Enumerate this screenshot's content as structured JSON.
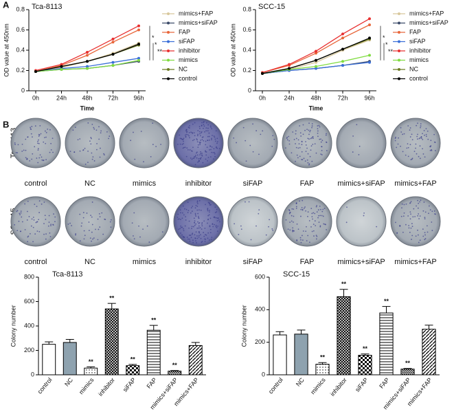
{
  "panel_labels": [
    "A",
    "B"
  ],
  "plates": {
    "rows": [
      "Tca-8113",
      "SCC-15"
    ],
    "captions": [
      "control",
      "NC",
      "mimics",
      "inhibitor",
      "siFAP",
      "FAP",
      "mimics+siFAP",
      "mimics+FAP"
    ]
  },
  "chart_data": [
    {
      "type": "line",
      "title": "Tca-8113",
      "x_label": "Time",
      "y_label": "OD value at 450nm",
      "categories": [
        "0h",
        "24h",
        "48h",
        "72h",
        "96h"
      ],
      "ylim": [
        0,
        0.8
      ],
      "yticks": [
        0,
        0.2,
        0.4,
        0.6,
        0.8
      ],
      "annotations": [
        "*",
        "*",
        "**"
      ],
      "series": [
        {
          "name": "mimics+FAP",
          "color": "#d8c89c",
          "values": [
            0.19,
            0.23,
            0.29,
            0.37,
            0.47
          ]
        },
        {
          "name": "mimics+siFAP",
          "color": "#3b4a68",
          "values": [
            0.19,
            0.21,
            0.22,
            0.25,
            0.29
          ]
        },
        {
          "name": "FAP",
          "color": "#e8663a",
          "values": [
            0.19,
            0.25,
            0.35,
            0.48,
            0.6
          ]
        },
        {
          "name": "siFAP",
          "color": "#3a6fd8",
          "values": [
            0.19,
            0.22,
            0.24,
            0.28,
            0.32
          ]
        },
        {
          "name": "inhibitor",
          "color": "#e83030",
          "values": [
            0.2,
            0.26,
            0.38,
            0.51,
            0.64
          ]
        },
        {
          "name": "mimics",
          "color": "#80dc40",
          "values": [
            0.19,
            0.21,
            0.22,
            0.25,
            0.3
          ]
        },
        {
          "name": "NC",
          "color": "#6b7a20",
          "values": [
            0.19,
            0.24,
            0.29,
            0.36,
            0.45
          ]
        },
        {
          "name": "control",
          "color": "#000000",
          "values": [
            0.19,
            0.24,
            0.29,
            0.36,
            0.46
          ]
        }
      ]
    },
    {
      "type": "line",
      "title": "SCC-15",
      "x_label": "Time",
      "y_label": "OD value at 450nm",
      "categories": [
        "0h",
        "24h",
        "48h",
        "72h",
        "96h"
      ],
      "ylim": [
        0,
        0.8
      ],
      "yticks": [
        0,
        0.2,
        0.4,
        0.6,
        0.8
      ],
      "annotations": [
        "*",
        "*",
        "**"
      ],
      "series": [
        {
          "name": "mimics+FAP",
          "color": "#d8c89c",
          "values": [
            0.17,
            0.21,
            0.28,
            0.4,
            0.5
          ]
        },
        {
          "name": "mimics+siFAP",
          "color": "#3b4a68",
          "values": [
            0.17,
            0.2,
            0.22,
            0.25,
            0.29
          ]
        },
        {
          "name": "FAP",
          "color": "#e8663a",
          "values": [
            0.18,
            0.25,
            0.37,
            0.52,
            0.65
          ]
        },
        {
          "name": "siFAP",
          "color": "#3a6fd8",
          "values": [
            0.17,
            0.2,
            0.22,
            0.25,
            0.28
          ]
        },
        {
          "name": "inhibitor",
          "color": "#e83030",
          "values": [
            0.18,
            0.26,
            0.39,
            0.56,
            0.71
          ]
        },
        {
          "name": "mimics",
          "color": "#80dc40",
          "values": [
            0.17,
            0.21,
            0.24,
            0.29,
            0.35
          ]
        },
        {
          "name": "NC",
          "color": "#6b7a20",
          "values": [
            0.17,
            0.22,
            0.3,
            0.41,
            0.51
          ]
        },
        {
          "name": "control",
          "color": "#000000",
          "values": [
            0.17,
            0.22,
            0.3,
            0.41,
            0.52
          ]
        }
      ]
    },
    {
      "type": "bar",
      "title": "Tca-8113",
      "y_label": "Colony number",
      "categories": [
        "control",
        "NC",
        "mimics",
        "inhibitor",
        "siFAP",
        "FAP",
        "mimics+siFAP",
        "mimics+FAP"
      ],
      "values": [
        250,
        265,
        55,
        540,
        75,
        365,
        30,
        240
      ],
      "errors": [
        20,
        25,
        10,
        45,
        10,
        40,
        5,
        25
      ],
      "significance": [
        null,
        null,
        "**",
        "**",
        "**",
        "**",
        "**",
        null
      ],
      "patterns": [
        "white",
        "solid",
        "dots",
        "cross",
        "checker",
        "hlines",
        "dense",
        "diag"
      ],
      "ylim": [
        0,
        800
      ],
      "yticks": [
        0,
        200,
        400,
        600,
        800
      ]
    },
    {
      "type": "bar",
      "title": "SCC-15",
      "y_label": "Colony number",
      "categories": [
        "control",
        "NC",
        "mimics",
        "inhibitor",
        "siFAP",
        "FAP",
        "mimics+siFAP",
        "mimics+FAP"
      ],
      "values": [
        245,
        250,
        65,
        480,
        120,
        380,
        35,
        280
      ],
      "errors": [
        20,
        25,
        10,
        45,
        8,
        40,
        4,
        25
      ],
      "significance": [
        null,
        null,
        "**",
        "**",
        "**",
        "**",
        "**",
        null
      ],
      "patterns": [
        "white",
        "solid",
        "dots",
        "cross",
        "checker",
        "hlines",
        "dense",
        "diag"
      ],
      "ylim": [
        0,
        600
      ],
      "yticks": [
        0,
        200,
        400,
        600
      ]
    }
  ]
}
